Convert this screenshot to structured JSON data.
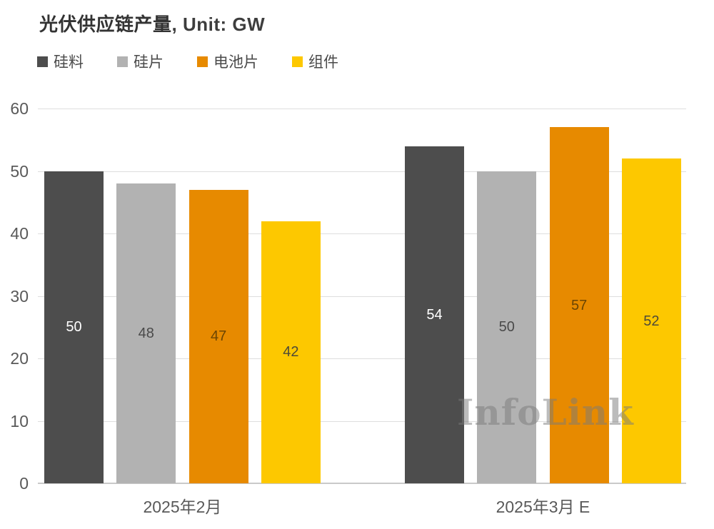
{
  "header": {
    "title_main": "光伏供应链产量",
    "title_suffix": ", Unit: GW"
  },
  "watermark": "InfoLink",
  "chart_data": {
    "type": "bar",
    "title": "光伏供应链产量, Unit: GW",
    "unit": "GW",
    "categories": [
      "2025年2月",
      "2025年3月 E"
    ],
    "series": [
      {
        "name": "硅料",
        "color": "#4D4D4D",
        "label_color": "#ffffff",
        "values": [
          50,
          54
        ]
      },
      {
        "name": "硅片",
        "color": "#B2B2B2",
        "label_color": "#4a4a4a",
        "values": [
          48,
          50
        ]
      },
      {
        "name": "电池片",
        "color": "#E78A00",
        "label_color": "#6b4503",
        "values": [
          47,
          57
        ]
      },
      {
        "name": "组件",
        "color": "#FDC800",
        "label_color": "#4d4a38",
        "values": [
          42,
          52
        ]
      }
    ],
    "ylim": [
      0,
      60
    ],
    "ytick_step": 10,
    "grid": true,
    "legend_position": "top",
    "value_labels": "centered-inside-bars"
  },
  "colors": {
    "gridline": "#dedede",
    "baseline": "#c9c9c9",
    "axis_text": "#595959",
    "title_text": "#333333",
    "legend_text": "#4a4a4a",
    "watermark_text": "rgba(122,122,122,0.5)"
  }
}
